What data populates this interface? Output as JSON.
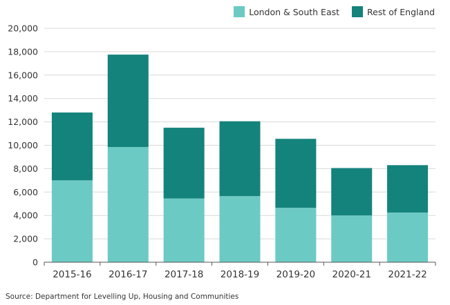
{
  "chart_data": {
    "type": "bar",
    "stacked": true,
    "title": "",
    "xlabel": "",
    "ylabel": "",
    "ylim": [
      0,
      20000
    ],
    "yticks": [
      0,
      2000,
      4000,
      6000,
      8000,
      10000,
      12000,
      14000,
      16000,
      18000,
      20000
    ],
    "ytick_labels": [
      "0",
      "2,000",
      "4,000",
      "6,000",
      "8,000",
      "10,000",
      "12,000",
      "14,000",
      "16,000",
      "18,000",
      "20,000"
    ],
    "grid": true,
    "legend_position": "top-right",
    "categories": [
      "2015-16",
      "2016-17",
      "2017-18",
      "2018-19",
      "2019-20",
      "2020-21",
      "2021-22"
    ],
    "series": [
      {
        "name": "London & South East",
        "color": "#6ccac4",
        "values": [
          7000,
          9850,
          5450,
          5650,
          4650,
          4000,
          4250
        ]
      },
      {
        "name": "Rest of England",
        "color": "#14837c",
        "values": [
          5800,
          7900,
          6050,
          6400,
          5900,
          4050,
          4050
        ]
      }
    ]
  },
  "source_text": "Source: Department for Levelling Up, Housing and Communities"
}
